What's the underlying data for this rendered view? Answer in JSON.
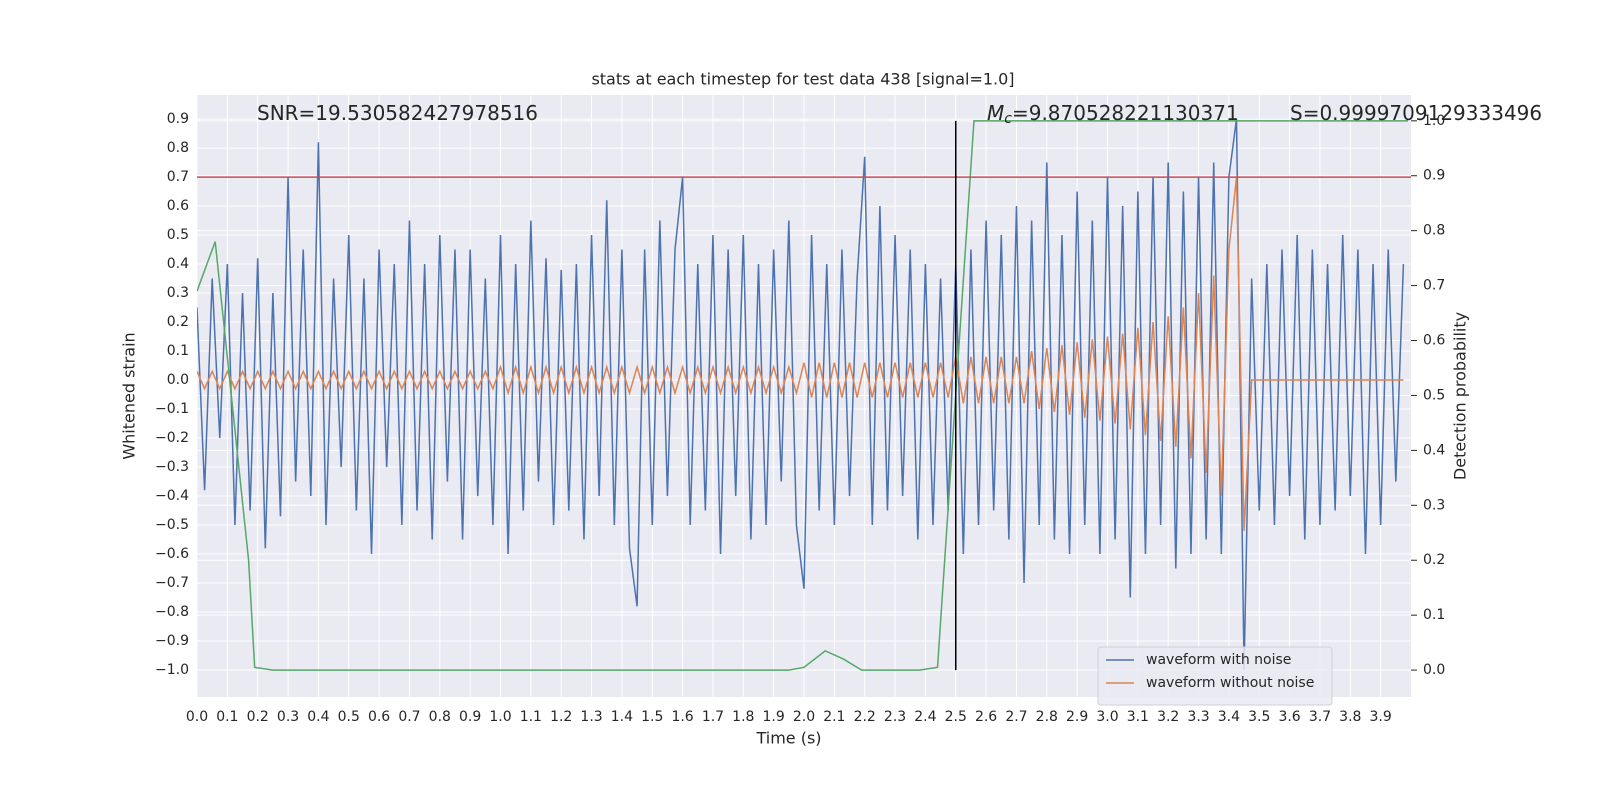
{
  "chart_data": {
    "type": "line",
    "title": "stats at each timestep for test data 438 [signal=1.0]",
    "xlabel": "Time (s)",
    "ylabel": "Whitened strain",
    "y2label": "Detection probability",
    "xlim": [
      0,
      4.0
    ],
    "ylim": [
      -1.093,
      0.983
    ],
    "y2lim": [
      -0.049,
      1.047
    ],
    "xticks": [
      {
        "value": 0,
        "label": "0.0"
      },
      0.1,
      0.2,
      0.3,
      0.4,
      0.5,
      0.6,
      0.7,
      0.8,
      0.9,
      {
        "value": 1,
        "label": "1.0"
      },
      1.1,
      1.2,
      1.3,
      1.4,
      1.5,
      1.6,
      1.7,
      1.8,
      1.9,
      {
        "value": 2,
        "label": "2.0"
      },
      2.1,
      2.2,
      2.3,
      2.4,
      2.5,
      2.6,
      2.7,
      2.8,
      2.9,
      {
        "value": 3,
        "label": "3.0"
      },
      3.1,
      3.2,
      3.3,
      3.4,
      3.5,
      3.6,
      3.7,
      3.8,
      3.9
    ],
    "yticks": [
      {
        "value": -1,
        "label": "−1.0"
      },
      {
        "value": -0.9,
        "label": "−0.9"
      },
      {
        "value": -0.8,
        "label": "−0.8"
      },
      {
        "value": -0.7,
        "label": "−0.7"
      },
      {
        "value": -0.6,
        "label": "−0.6"
      },
      {
        "value": -0.5,
        "label": "−0.5"
      },
      {
        "value": -0.4,
        "label": "−0.4"
      },
      {
        "value": -0.3,
        "label": "−0.3"
      },
      {
        "value": -0.2,
        "label": "−0.2"
      },
      {
        "value": -0.1,
        "label": "−0.1"
      },
      {
        "value": 0,
        "label": "0.0"
      },
      0.1,
      0.2,
      0.3,
      0.4,
      0.5,
      0.6,
      0.7,
      0.8,
      0.9
    ],
    "y2ticks": [
      {
        "value": 0,
        "label": "0.0"
      },
      0.1,
      0.2,
      0.3,
      0.4,
      0.5,
      0.6,
      0.7,
      0.8,
      0.9,
      {
        "value": 1,
        "label": "1.0"
      }
    ],
    "grid": true,
    "legend": "lower right",
    "x": [
      0,
      0.025,
      0.05,
      0.075,
      0.1,
      0.125,
      0.15,
      0.175,
      0.2,
      0.225,
      0.25,
      0.275,
      0.3,
      0.325,
      0.35,
      0.375,
      0.4,
      0.425,
      0.45,
      0.475,
      0.5,
      0.525,
      0.55,
      0.575,
      0.6,
      0.625,
      0.65,
      0.675,
      0.7,
      0.725,
      0.75,
      0.775,
      0.8,
      0.825,
      0.85,
      0.875,
      0.9,
      0.925,
      0.95,
      0.975,
      1,
      1.025,
      1.05,
      1.075,
      1.1,
      1.125,
      1.15,
      1.175,
      1.2,
      1.225,
      1.25,
      1.275,
      1.3,
      1.325,
      1.35,
      1.375,
      1.4,
      1.425,
      1.45,
      1.475,
      1.5,
      1.525,
      1.55,
      1.575,
      1.6,
      1.625,
      1.65,
      1.675,
      1.7,
      1.725,
      1.75,
      1.775,
      1.8,
      1.825,
      1.85,
      1.875,
      1.9,
      1.925,
      1.95,
      1.975,
      2,
      2.025,
      2.05,
      2.075,
      2.1,
      2.125,
      2.15,
      2.175,
      2.2,
      2.225,
      2.25,
      2.275,
      2.3,
      2.325,
      2.35,
      2.375,
      2.4,
      2.425,
      2.45,
      2.475,
      2.5,
      2.525,
      2.55,
      2.575,
      2.6,
      2.625,
      2.65,
      2.675,
      2.7,
      2.725,
      2.75,
      2.775,
      2.8,
      2.825,
      2.85,
      2.875,
      2.9,
      2.925,
      2.95,
      2.975,
      3,
      3.025,
      3.05,
      3.075,
      3.1,
      3.125,
      3.15,
      3.175,
      3.2,
      3.225,
      3.25,
      3.275,
      3.3,
      3.325,
      3.35,
      3.375,
      3.4,
      3.425,
      3.45,
      3.475,
      3.5,
      3.525,
      3.55,
      3.575,
      3.6,
      3.625,
      3.65,
      3.675,
      3.7,
      3.725,
      3.75,
      3.775,
      3.8,
      3.825,
      3.85,
      3.875,
      3.9,
      3.925,
      3.95,
      3.975
    ],
    "series": [
      {
        "name": "waveform with noise",
        "color": "#4c72b0",
        "values": [
          0.25,
          -0.38,
          0.35,
          -0.2,
          0.4,
          -0.5,
          0.3,
          -0.45,
          0.42,
          -0.58,
          0.3,
          -0.47,
          0.7,
          -0.35,
          0.45,
          -0.4,
          0.82,
          -0.5,
          0.35,
          -0.3,
          0.5,
          -0.45,
          0.35,
          -0.6,
          0.45,
          -0.3,
          0.4,
          -0.5,
          0.55,
          -0.45,
          0.4,
          -0.55,
          0.5,
          -0.35,
          0.45,
          -0.55,
          0.45,
          -0.4,
          0.35,
          -0.5,
          0.5,
          -0.6,
          0.4,
          -0.45,
          0.55,
          -0.35,
          0.42,
          -0.5,
          0.38,
          -0.45,
          0.4,
          -0.55,
          0.5,
          -0.4,
          0.62,
          -0.5,
          0.45,
          -0.58,
          -0.78,
          0.45,
          -0.5,
          0.55,
          -0.4,
          0.45,
          0.7,
          -0.5,
          0.4,
          -0.45,
          0.5,
          -0.6,
          0.45,
          -0.4,
          0.5,
          -0.55,
          0.4,
          -0.5,
          0.45,
          -0.35,
          0.55,
          -0.5,
          -0.72,
          0.5,
          -0.45,
          0.4,
          -0.5,
          0.45,
          -0.4,
          0.35,
          0.77,
          -0.5,
          0.6,
          -0.45,
          0.5,
          -0.4,
          0.45,
          -0.55,
          0.4,
          -0.5,
          0.35,
          -0.45,
          0.4,
          -0.6,
          0.45,
          -0.5,
          0.55,
          -0.45,
          0.5,
          -0.55,
          0.6,
          -0.7,
          0.55,
          -0.5,
          0.75,
          -0.55,
          0.5,
          -0.6,
          0.65,
          -0.5,
          0.55,
          -0.6,
          0.7,
          -0.55,
          0.6,
          -0.75,
          0.65,
          -0.6,
          0.7,
          -0.5,
          0.75,
          -0.65,
          0.65,
          -0.6,
          0.7,
          -0.55,
          0.75,
          -0.6,
          0.7,
          0.9,
          -1.0,
          0.35,
          -0.45,
          0.4,
          -0.5,
          0.45,
          -0.4,
          0.5,
          -0.55,
          0.45,
          -0.5,
          0.4,
          -0.45,
          0.5,
          -0.4,
          0.45,
          -0.6,
          0.4,
          -0.5,
          0.45,
          -0.35,
          0.4
        ]
      },
      {
        "name": "waveform without noise",
        "color": "#dd8452",
        "values": [
          0.03,
          -0.03,
          0.03,
          -0.03,
          0.03,
          -0.03,
          0.03,
          -0.03,
          0.03,
          -0.03,
          0.03,
          -0.03,
          0.03,
          -0.03,
          0.03,
          -0.03,
          0.03,
          -0.03,
          0.03,
          -0.03,
          0.03,
          -0.03,
          0.03,
          -0.03,
          0.03,
          -0.03,
          0.03,
          -0.03,
          0.03,
          -0.03,
          0.03,
          -0.03,
          0.03,
          -0.03,
          0.03,
          -0.03,
          0.03,
          -0.03,
          0.03,
          -0.03,
          0.045,
          -0.045,
          0.045,
          -0.045,
          0.045,
          -0.045,
          0.045,
          -0.045,
          0.045,
          -0.045,
          0.045,
          -0.045,
          0.045,
          -0.045,
          0.045,
          -0.045,
          0.045,
          -0.045,
          0.045,
          -0.045,
          0.045,
          -0.045,
          0.045,
          -0.045,
          0.045,
          -0.045,
          0.045,
          -0.045,
          0.045,
          -0.045,
          0.045,
          -0.045,
          0.045,
          -0.045,
          0.045,
          -0.045,
          0.045,
          -0.045,
          0.045,
          -0.045,
          0.06,
          -0.06,
          0.06,
          -0.06,
          0.06,
          -0.06,
          0.06,
          -0.06,
          0.06,
          -0.06,
          0.06,
          -0.06,
          0.06,
          -0.06,
          0.06,
          -0.06,
          0.06,
          -0.06,
          0.06,
          -0.06,
          0.08,
          -0.08,
          0.08,
          -0.08,
          0.08,
          -0.08,
          0.08,
          -0.08,
          0.08,
          -0.08,
          0.1,
          -0.1,
          0.11,
          -0.11,
          0.12,
          -0.12,
          0.13,
          -0.13,
          0.14,
          -0.14,
          0.15,
          -0.15,
          0.16,
          -0.17,
          0.18,
          -0.19,
          0.2,
          -0.21,
          0.22,
          -0.23,
          0.25,
          -0.27,
          0.3,
          -0.32,
          0.36,
          -0.4,
          0.45,
          0.7,
          -0.52,
          0,
          0,
          0,
          0,
          0,
          0,
          0,
          0,
          0,
          0,
          0,
          0,
          0,
          0,
          0,
          0,
          0,
          0,
          0,
          0,
          0
        ]
      },
      {
        "color": "#55a868",
        "axis": "y2",
        "x": [
          0,
          0.06,
          0.17,
          0.19,
          0.25,
          1.95,
          2.0,
          2.07,
          2.13,
          2.19,
          2.38,
          2.44,
          2.56,
          3.99
        ],
        "values": [
          0.69,
          0.78,
          0.2,
          0.005,
          0,
          0,
          0.005,
          0.035,
          0.02,
          0,
          0,
          0.005,
          1.0,
          1.0
        ]
      }
    ],
    "hline": {
      "y": 0.7,
      "color": "#c44e52"
    },
    "vline": {
      "x": 2.5,
      "y2range": [
        0,
        1
      ],
      "color": "#000000"
    },
    "annotations": [
      {
        "text": "SNR=19.530582427978516"
      },
      {
        "symbol": "M",
        "subscript": "c",
        "text": "=9.870528221130371"
      },
      {
        "text": "S=0.9999709129333496"
      }
    ]
  }
}
